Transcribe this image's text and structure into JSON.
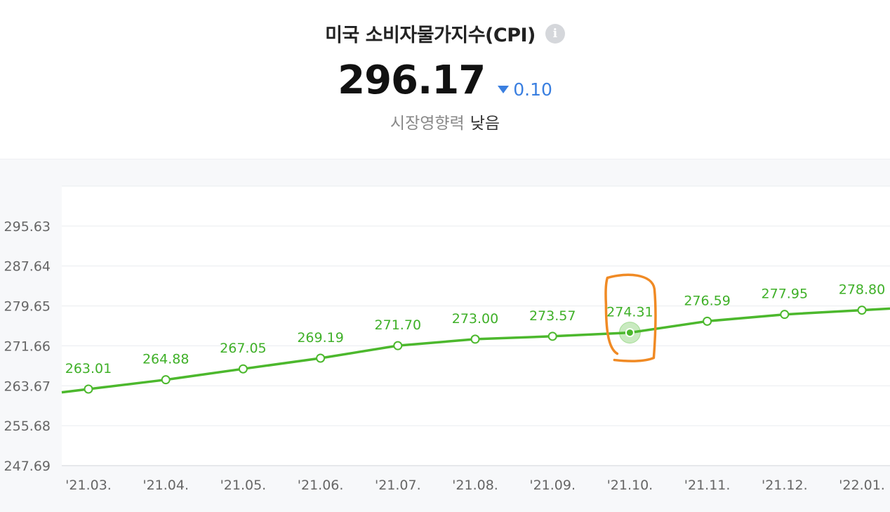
{
  "header": {
    "title": "미국 소비자물가지수(CPI)",
    "info_icon": "info-icon",
    "value": "296.17",
    "change": "0.10",
    "change_direction": "down",
    "impact_label": "시장영향력",
    "impact_value": "낮음"
  },
  "colors": {
    "line": "#4cb82d",
    "label": "#3fb028",
    "highlight_marker": "#f08a24",
    "change": "#3a7fe0"
  },
  "chart_data": {
    "type": "line",
    "x": [
      "'21.03.",
      "'21.04.",
      "'21.05.",
      "'21.06.",
      "'21.07.",
      "'21.08.",
      "'21.09.",
      "'21.10.",
      "'21.11.",
      "'21.12.",
      "'22.01."
    ],
    "series": [
      {
        "values": [
          263.01,
          264.88,
          267.05,
          269.19,
          271.7,
          273.0,
          273.57,
          274.31,
          276.59,
          277.95,
          278.8
        ]
      }
    ],
    "data_labels": [
      "263.01",
      "264.88",
      "267.05",
      "269.19",
      "271.70",
      "273.00",
      "273.57",
      "274.31",
      "276.59",
      "277.95",
      "278.80"
    ],
    "y_ticks": [
      "295.63",
      "287.64",
      "279.65",
      "271.66",
      "263.67",
      "255.68",
      "247.69"
    ],
    "ylim": [
      247.69,
      303.62
    ],
    "grid": true,
    "highlighted_category": "'21.10."
  }
}
